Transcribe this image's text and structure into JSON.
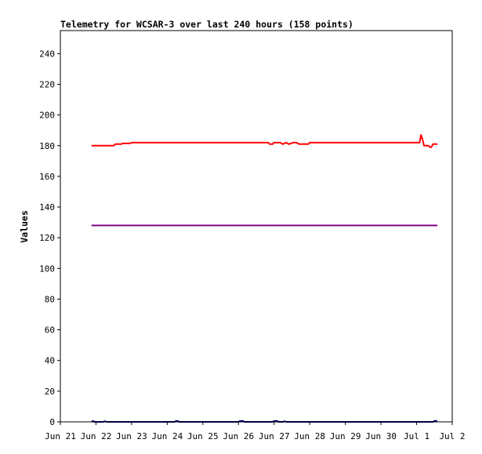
{
  "chart_data": {
    "type": "line",
    "title": "Telemetry for WCSAR-3 over last 240 hours (158 points)",
    "xlabel": "",
    "ylabel": "Values",
    "x_type": "time",
    "xlim": [
      "2023-06-21T00:00",
      "2023-07-02T00:00"
    ],
    "ylim": [
      0,
      255
    ],
    "x_ticks": [
      {
        "label": "Jun 21",
        "t": "2023-06-21T00:00"
      },
      {
        "label": "Jun 22",
        "t": "2023-06-22T00:00"
      },
      {
        "label": "Jun 23",
        "t": "2023-06-23T00:00"
      },
      {
        "label": "Jun 24",
        "t": "2023-06-24T00:00"
      },
      {
        "label": "Jun 25",
        "t": "2023-06-25T00:00"
      },
      {
        "label": "Jun 26",
        "t": "2023-06-26T00:00"
      },
      {
        "label": "Jun 27",
        "t": "2023-06-27T00:00"
      },
      {
        "label": "Jun 28",
        "t": "2023-06-28T00:00"
      },
      {
        "label": "Jun 29",
        "t": "2023-06-29T00:00"
      },
      {
        "label": "Jun 30",
        "t": "2023-06-30T00:00"
      },
      {
        "label": "Jul 1",
        "t": "2023-07-01T00:00"
      },
      {
        "label": "Jul 2",
        "t": "2023-07-02T00:00"
      }
    ],
    "y_ticks": [
      0,
      20,
      40,
      60,
      80,
      100,
      120,
      140,
      160,
      180,
      200,
      220,
      240
    ],
    "grid": false,
    "legend": "none",
    "series": [
      {
        "color": "#ff0000",
        "points": [
          {
            "t": "2023-06-21T21:00",
            "y": 180
          },
          {
            "t": "2023-06-22T12:00",
            "y": 180
          },
          {
            "t": "2023-06-22T13:00",
            "y": 181
          },
          {
            "t": "2023-06-22T17:00",
            "y": 181
          },
          {
            "t": "2023-06-22T18:00",
            "y": 181.5
          },
          {
            "t": "2023-06-22T23:00",
            "y": 181.5
          },
          {
            "t": "2023-06-23T00:00",
            "y": 182
          },
          {
            "t": "2023-06-26T20:00",
            "y": 182
          },
          {
            "t": "2023-06-26T21:00",
            "y": 181
          },
          {
            "t": "2023-06-26T23:00",
            "y": 181
          },
          {
            "t": "2023-06-27T00:00",
            "y": 182
          },
          {
            "t": "2023-06-27T04:00",
            "y": 182
          },
          {
            "t": "2023-06-27T06:00",
            "y": 181
          },
          {
            "t": "2023-06-27T08:00",
            "y": 182
          },
          {
            "t": "2023-06-27T10:00",
            "y": 181
          },
          {
            "t": "2023-06-27T13:00",
            "y": 182
          },
          {
            "t": "2023-06-27T15:00",
            "y": 182
          },
          {
            "t": "2023-06-27T17:00",
            "y": 181
          },
          {
            "t": "2023-06-27T23:00",
            "y": 181
          },
          {
            "t": "2023-06-28T00:00",
            "y": 182
          },
          {
            "t": "2023-07-01T02:00",
            "y": 182
          },
          {
            "t": "2023-07-01T03:00",
            "y": 187
          },
          {
            "t": "2023-07-01T04:00",
            "y": 184
          },
          {
            "t": "2023-07-01T05:00",
            "y": 180
          },
          {
            "t": "2023-07-01T08:00",
            "y": 180
          },
          {
            "t": "2023-07-01T09:00",
            "y": 179
          },
          {
            "t": "2023-07-01T10:00",
            "y": 179
          },
          {
            "t": "2023-07-01T11:00",
            "y": 181
          },
          {
            "t": "2023-07-01T14:00",
            "y": 181
          }
        ]
      },
      {
        "color": "#800080",
        "points": [
          {
            "t": "2023-06-21T21:00",
            "y": 128
          },
          {
            "t": "2023-07-01T14:00",
            "y": 128
          }
        ]
      },
      {
        "color": "#000080",
        "points": [
          {
            "t": "2023-06-21T21:00",
            "y": 0
          },
          {
            "t": "2023-06-21T22:00",
            "y": 0.6
          },
          {
            "t": "2023-06-21T23:00",
            "y": 0
          },
          {
            "t": "2023-06-22T05:00",
            "y": 0
          },
          {
            "t": "2023-06-22T06:00",
            "y": 0.4
          },
          {
            "t": "2023-06-22T07:00",
            "y": 0
          },
          {
            "t": "2023-06-24T05:00",
            "y": 0
          },
          {
            "t": "2023-06-24T06:00",
            "y": 0.6
          },
          {
            "t": "2023-06-24T07:00",
            "y": 0.6
          },
          {
            "t": "2023-06-24T08:00",
            "y": 0
          },
          {
            "t": "2023-06-26T00:00",
            "y": 0
          },
          {
            "t": "2023-06-26T01:00",
            "y": 0.6
          },
          {
            "t": "2023-06-26T03:00",
            "y": 0.6
          },
          {
            "t": "2023-06-26T04:00",
            "y": 0
          },
          {
            "t": "2023-06-26T23:00",
            "y": 0
          },
          {
            "t": "2023-06-27T00:00",
            "y": 0.6
          },
          {
            "t": "2023-06-27T02:00",
            "y": 0.6
          },
          {
            "t": "2023-06-27T03:00",
            "y": 0
          },
          {
            "t": "2023-06-27T06:00",
            "y": 0
          },
          {
            "t": "2023-06-27T07:00",
            "y": 0.4
          },
          {
            "t": "2023-06-27T08:00",
            "y": 0
          },
          {
            "t": "2023-07-01T11:00",
            "y": 0
          },
          {
            "t": "2023-07-01T12:00",
            "y": 0.6
          },
          {
            "t": "2023-07-01T14:00",
            "y": 0.6
          }
        ]
      }
    ]
  }
}
